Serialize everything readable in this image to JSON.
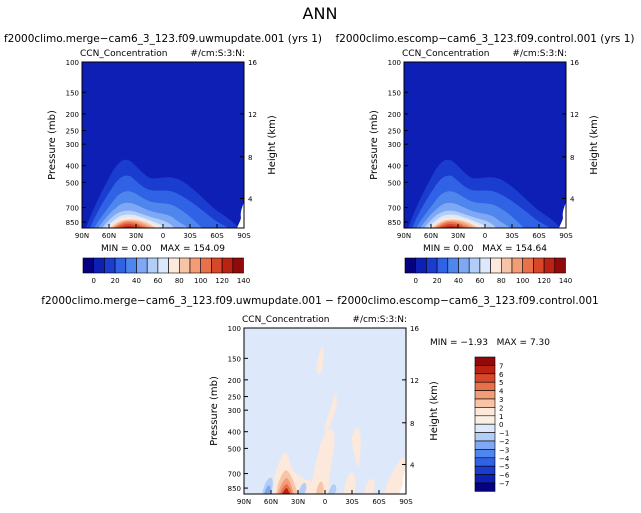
{
  "page_title": "ANN",
  "chart_data": [
    {
      "type": "heatmap",
      "title": "f2000climo.merge−cam6_3_123.f09.uwmupdate.001 (yrs 1)",
      "subtitle_left": "CCN_Concentration",
      "subtitle_right": "#/cm:S:3:N:",
      "ylabel": "Pressure (mb)",
      "ylabel_right": "Height (km)",
      "x_ticks": [
        "90N",
        "60N",
        "30N",
        "0",
        "30S",
        "60S",
        "90S"
      ],
      "y_ticks": [
        "100",
        "150",
        "200",
        "250",
        "300",
        "400",
        "500",
        "700",
        "850"
      ],
      "y2_ticks": [
        "16",
        "12",
        "8",
        "4"
      ],
      "stats": {
        "min": "0.00",
        "max": "154.09"
      },
      "colorbar": {
        "labels": [
          "0",
          "20",
          "40",
          "60",
          "80",
          "100",
          "120",
          "140"
        ],
        "colors": [
          "#06027f",
          "#0d1fb4",
          "#1a3ccf",
          "#2f62e4",
          "#4e86ee",
          "#7ea8f3",
          "#b2cdf7",
          "#dde9fb",
          "#fde8dc",
          "#f8c4a7",
          "#f29d77",
          "#e8704a",
          "#d9472a",
          "#bb2214",
          "#8f0a09"
        ]
      }
    },
    {
      "type": "heatmap",
      "title": "f2000climo.escomp−cam6_3_123.f09.control.001 (yrs 1)",
      "subtitle_left": "CCN_Concentration",
      "subtitle_right": "#/cm:S:3:N:",
      "ylabel": "Pressure (mb)",
      "ylabel_right": "Height (km)",
      "x_ticks": [
        "90N",
        "60N",
        "30N",
        "0",
        "30S",
        "60S",
        "90S"
      ],
      "y_ticks": [
        "100",
        "150",
        "200",
        "250",
        "300",
        "400",
        "500",
        "700",
        "850"
      ],
      "y2_ticks": [
        "16",
        "12",
        "8",
        "4"
      ],
      "stats": {
        "min": "0.00",
        "max": "154.64"
      },
      "colorbar": {
        "labels": [
          "0",
          "20",
          "40",
          "60",
          "80",
          "100",
          "120",
          "140"
        ],
        "colors": [
          "#06027f",
          "#0d1fb4",
          "#1a3ccf",
          "#2f62e4",
          "#4e86ee",
          "#7ea8f3",
          "#b2cdf7",
          "#dde9fb",
          "#fde8dc",
          "#f8c4a7",
          "#f29d77",
          "#e8704a",
          "#d9472a",
          "#bb2214",
          "#8f0a09"
        ]
      }
    },
    {
      "type": "heatmap",
      "title": "f2000climo.merge−cam6_3_123.f09.uwmupdate.001 − f2000climo.escomp−cam6_3_123.f09.control.001",
      "subtitle_left": "CCN_Concentration",
      "subtitle_right": "#/cm:S:3:N:",
      "ylabel": "Pressure (mb)",
      "ylabel_right": "Height (km)",
      "x_ticks": [
        "90N",
        "60N",
        "30N",
        "0",
        "30S",
        "60S",
        "90S"
      ],
      "y_ticks": [
        "100",
        "150",
        "200",
        "250",
        "300",
        "400",
        "500",
        "700",
        "850"
      ],
      "y2_ticks": [
        "16",
        "12",
        "8",
        "4"
      ],
      "stats": {
        "min": "−1.93",
        "max": "7.30"
      },
      "colorbar": {
        "labels": [
          "7",
          "6",
          "5",
          "4",
          "3",
          "2",
          "1",
          "0",
          "−1",
          "−2",
          "−3",
          "−4",
          "−5",
          "−6",
          "−7"
        ],
        "colors": [
          "#8f0a09",
          "#bb2214",
          "#d9472a",
          "#e8704a",
          "#f29d77",
          "#f8c4a7",
          "#fde8dc",
          "#fbeee4",
          "#dde9fb",
          "#b2cdf7",
          "#7ea8f3",
          "#4e86ee",
          "#2f62e4",
          "#1a3ccf",
          "#0d1fb4",
          "#06027f"
        ]
      }
    }
  ]
}
